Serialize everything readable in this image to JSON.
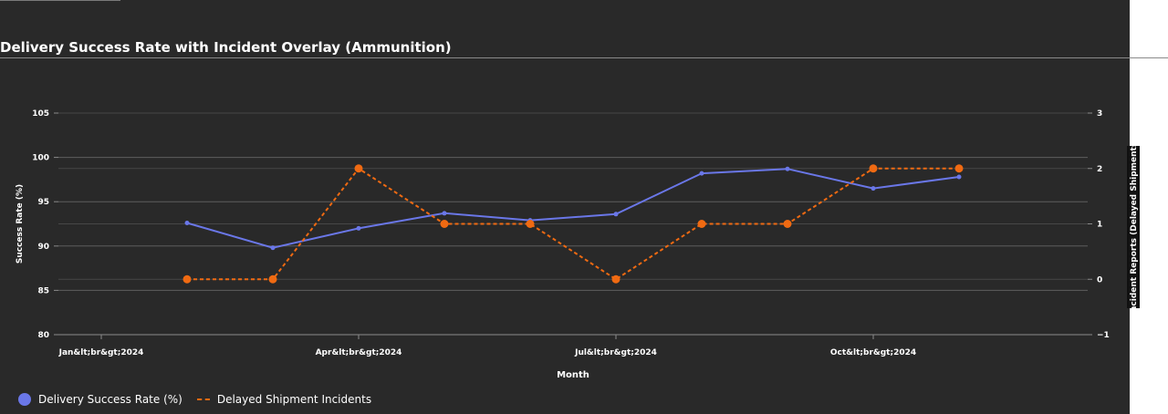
{
  "chart_data": {
    "type": "line",
    "title": "Delivery Success Rate with Incident Overlay (Ammunition)",
    "xlabel": "Month",
    "ylabel": "Success Rate (%)",
    "y2label": "Incident Reports (Delayed Shipments)",
    "x_tick_labels": [
      "Jan&lt;br&gt;2024",
      "Apr&lt;br&gt;2024",
      "Jul&lt;br&gt;2024",
      "Oct&lt;br&gt;2024"
    ],
    "x_tick_months": [
      0,
      3,
      6,
      9
    ],
    "xlim": [
      -0.5,
      11.5
    ],
    "ylim": [
      80,
      105
    ],
    "y_ticks": [
      80,
      85,
      90,
      95,
      100,
      105
    ],
    "y2lim": [
      -1,
      3
    ],
    "y2_ticks": [
      -1,
      0,
      1,
      2,
      3
    ],
    "y2_tick_labels": [
      "−1",
      "0",
      "1",
      "2",
      "3"
    ],
    "grid": true,
    "legend_position": "bottom-left",
    "series": [
      {
        "name": "Delivery Success Rate (%)",
        "axis": "left",
        "color": "#6a77e8",
        "x_months": [
          1,
          2,
          3,
          4,
          5,
          6,
          7,
          8,
          9,
          10
        ],
        "values": [
          92.6,
          89.8,
          92.0,
          93.7,
          92.9,
          93.6,
          98.2,
          98.7,
          96.5,
          97.8
        ]
      },
      {
        "name": "Delayed Shipment Incidents",
        "axis": "right",
        "color": "#f06a12",
        "x_months": [
          1,
          2,
          3,
          4,
          5,
          6,
          7,
          8,
          9,
          10
        ],
        "values": [
          0,
          0,
          2,
          1,
          1,
          0,
          1,
          1,
          2,
          2
        ]
      }
    ]
  }
}
